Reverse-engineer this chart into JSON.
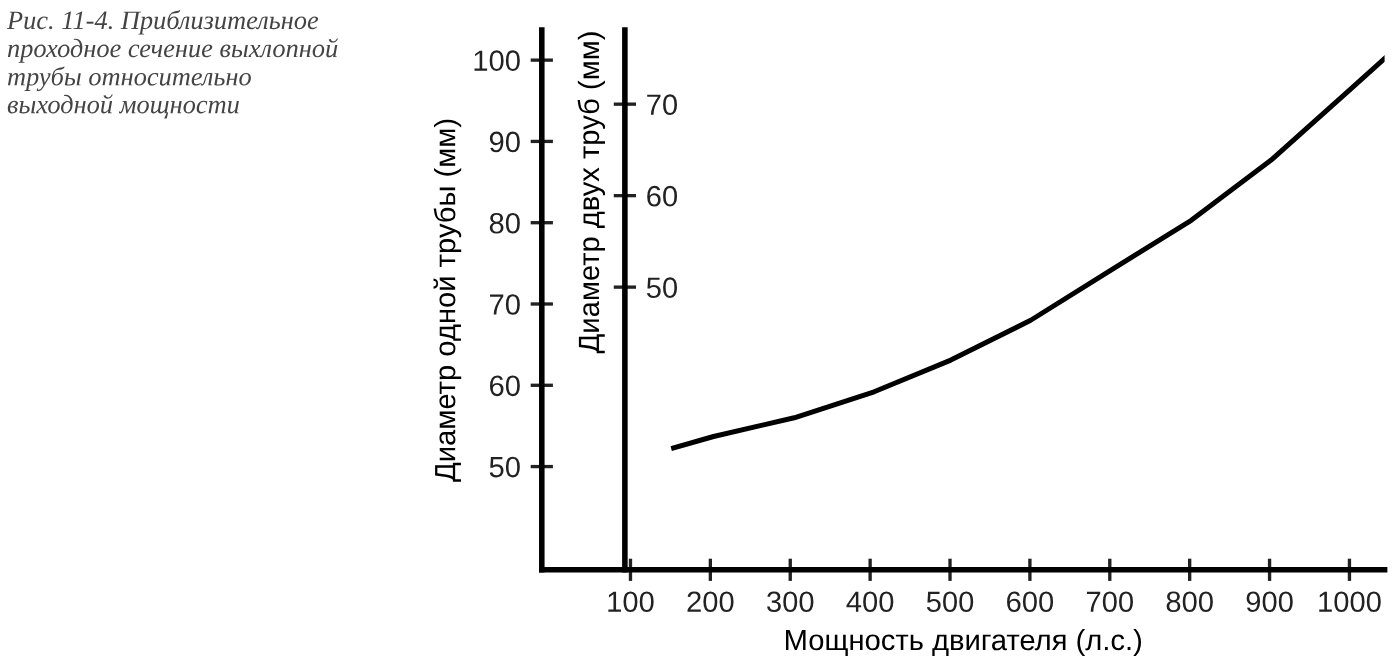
{
  "chart_data": {
    "type": "line",
    "xlabel": "Мощность двигателя (л.с.)",
    "ylabel": "Диаметр одной трубы (мм)",
    "y2label": "Диаметр двух труб (мм)",
    "annotations": [
      "Рис. 11-4. Приблизительное проходное сечение выхлопной трубы относительно выходной мощности"
    ],
    "x": [
      154,
      204,
      305,
      405,
      501,
      601,
      702,
      802,
      902,
      1000,
      1044
    ],
    "series": [
      {
        "color": "#000000",
        "values": [
          52.3,
          53.7,
          56.0,
          59.2,
          63.1,
          68.0,
          74.2,
          80.3,
          87.7,
          96.3,
          100.2
        ]
      }
    ],
    "xlim": [
      -11,
      1044
    ],
    "xticks": [
      100,
      200,
      300,
      400,
      500,
      600,
      700,
      800,
      900,
      1000
    ],
    "ylim": [
      37.3,
      103.7
    ],
    "yticks": [
      50,
      60,
      70,
      80,
      90,
      100
    ],
    "y2lim": [
      19.1,
      78.1
    ],
    "y2ticks": [
      50,
      60,
      70
    ],
    "grid": false,
    "legend": false,
    "marker": "none",
    "line_style": "solid"
  }
}
